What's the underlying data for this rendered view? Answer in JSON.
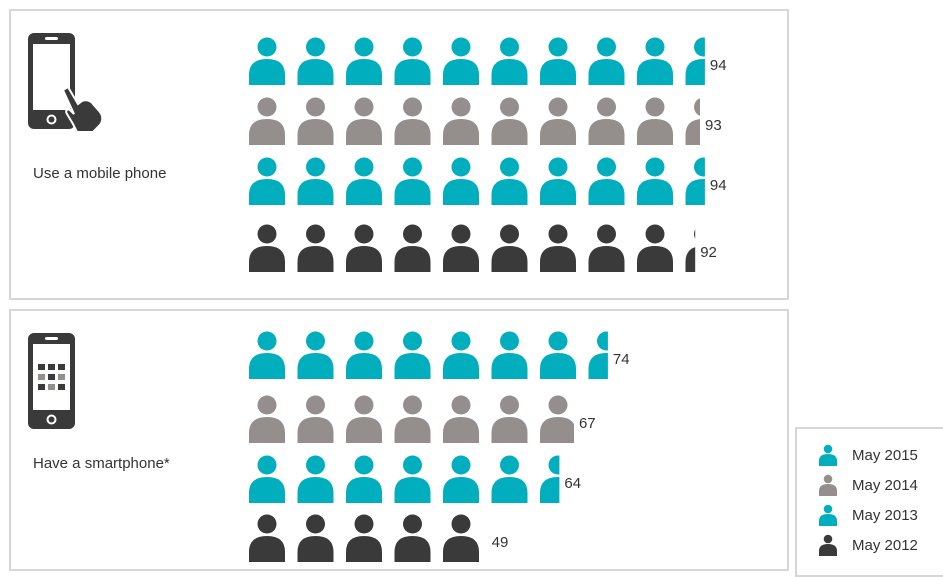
{
  "colors": {
    "May 2015": "#00aebd",
    "May 2014": "#948f8c",
    "May 2013": "#00aebd",
    "May 2012": "#3a3a3a"
  },
  "legend": {
    "items": [
      {
        "label": "May 2015",
        "color": "#00aebd"
      },
      {
        "label": "May 2014",
        "color": "#948f8c"
      },
      {
        "label": "May 2013",
        "color": "#00aebd"
      },
      {
        "label": "May 2012",
        "color": "#3a3a3a"
      }
    ]
  },
  "panels": [
    {
      "label": "Use a mobile phone",
      "icon": "touch-phone-icon"
    },
    {
      "label": "Have a smartphone*",
      "icon": "smartphone-apps-icon"
    }
  ],
  "chart_data": [
    {
      "type": "bar",
      "title": "Use a mobile phone",
      "unit_icon": "person-icon",
      "icon_value": 10,
      "series": [
        {
          "name": "May 2015",
          "values": [
            94
          ]
        },
        {
          "name": "May 2014",
          "values": [
            93
          ]
        },
        {
          "name": "May 2013",
          "values": [
            94
          ]
        },
        {
          "name": "May 2012",
          "values": [
            92
          ]
        }
      ],
      "value_labels": [
        "94",
        "93",
        "94",
        "92"
      ]
    },
    {
      "type": "bar",
      "title": "Have a smartphone*",
      "unit_icon": "person-icon",
      "icon_value": 10,
      "series": [
        {
          "name": "May 2015",
          "values": [
            74
          ]
        },
        {
          "name": "May 2014",
          "values": [
            67
          ]
        },
        {
          "name": "May 2013",
          "values": [
            64
          ]
        },
        {
          "name": "May 2012",
          "values": [
            49
          ]
        }
      ],
      "value_labels": [
        "74",
        "67",
        "64",
        "49"
      ]
    }
  ]
}
